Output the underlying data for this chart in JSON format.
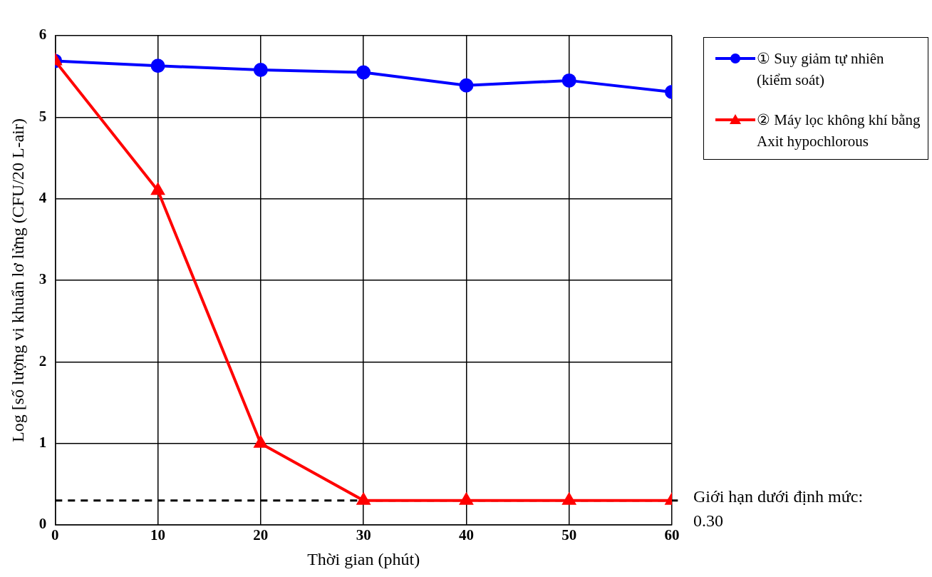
{
  "chart_data": {
    "type": "line",
    "xlabel": "Thời gian (phút)",
    "ylabel": "Log [số lượng vi khuẩn lơ lửng (CFU/20 L-air)",
    "x": [
      0,
      10,
      20,
      30,
      40,
      50,
      60
    ],
    "series": [
      {
        "name": "① Suy giảm tự nhiên (kiểm soát)",
        "color": "#0000ff",
        "marker": "circle",
        "values": [
          5.69,
          5.63,
          5.58,
          5.55,
          5.39,
          5.45,
          5.31
        ]
      },
      {
        "name": "② Máy lọc không khí bằng Axit hypochlorous",
        "color": "#ff0000",
        "marker": "triangle",
        "values": [
          5.69,
          4.1,
          1.0,
          0.3,
          0.3,
          0.3,
          0.3
        ]
      }
    ],
    "xlim": [
      0,
      60
    ],
    "xticks": [
      0,
      10,
      20,
      30,
      40,
      50,
      60
    ],
    "ylim": [
      0,
      6
    ],
    "yticks": [
      0,
      1,
      2,
      3,
      4,
      5,
      6
    ],
    "ref_lines": [
      {
        "axis": "y",
        "value": 0.3,
        "label": "Giới hạn dưới định mức: 0.30",
        "color": "#000000",
        "line_style": "dashed"
      }
    ],
    "grid": true,
    "legend": "top right",
    "line_style": "solid"
  }
}
